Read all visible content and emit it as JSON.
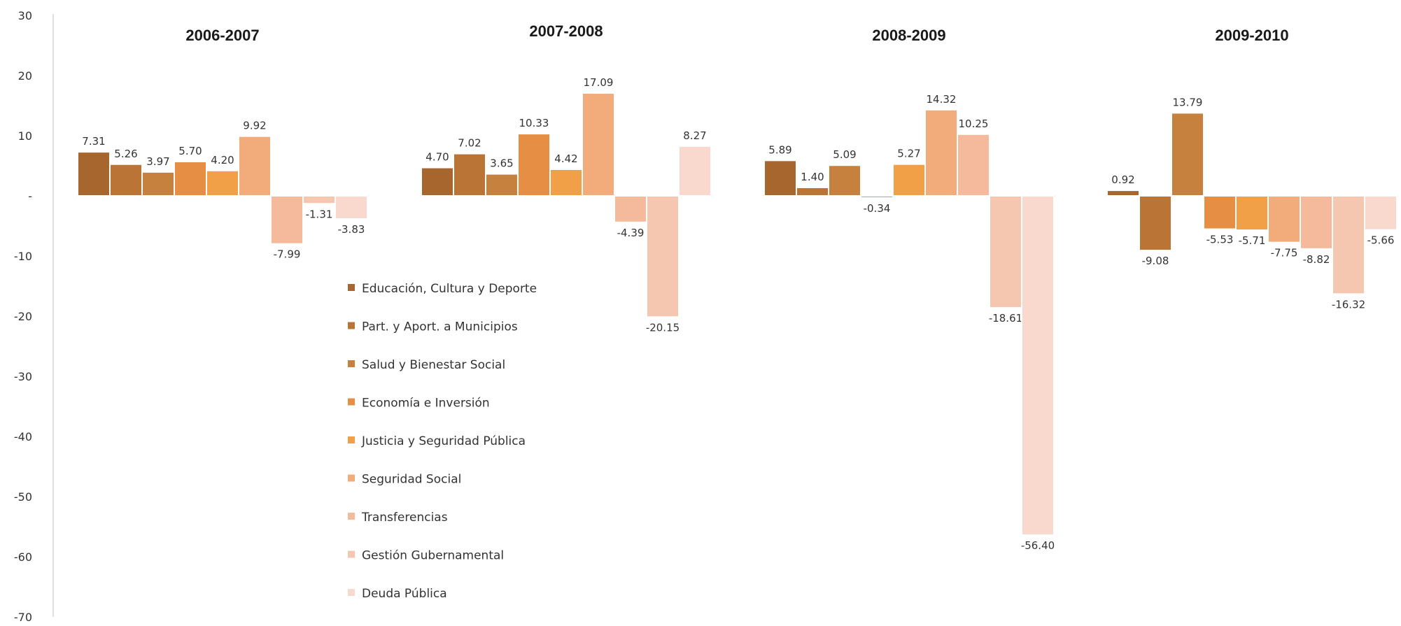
{
  "chart_data": {
    "type": "bar",
    "ylim": [
      -70,
      30
    ],
    "y_ticks": [
      "30",
      "20",
      "10",
      "-",
      "-10",
      "-20",
      "-30",
      "-40",
      "-50",
      "-60",
      "-70"
    ],
    "legend": {
      "placement": "center-left",
      "entries": [
        {
          "name": "Educación, Cultura y Deporte",
          "color": "#A8662F"
        },
        {
          "name": "Part. y Aport. a Municipios",
          "color": "#BA7436"
        },
        {
          "name": "Salud y Bienestar Social",
          "color": "#C7813E"
        },
        {
          "name": "Economía e Inversión",
          "color": "#E58E44"
        },
        {
          "name": "Justicia y Seguridad Pública",
          "color": "#F2A048"
        },
        {
          "name": "Seguridad Social",
          "color": "#F2AB7B"
        },
        {
          "name": "Transferencias",
          "color": "#F4BA9B"
        },
        {
          "name": "Gestión Gubernamental",
          "color": "#F6C7B0"
        },
        {
          "name": "Deuda Pública",
          "color": "#F9D8CD"
        }
      ]
    },
    "panels": [
      {
        "title": "2006-2007",
        "values": [
          7.31,
          5.26,
          3.97,
          5.7,
          4.2,
          9.92,
          -7.99,
          -1.31,
          -3.83
        ],
        "labels": [
          "7.31",
          "5.26",
          "3.97",
          "5.70",
          "4.20",
          "9.92",
          "-7.99",
          "-1.31",
          "-3.83"
        ]
      },
      {
        "title": "2007-2008",
        "values": [
          4.7,
          7.02,
          3.65,
          10.33,
          4.42,
          17.09,
          -4.39,
          -20.15,
          8.27
        ],
        "labels": [
          "4.70",
          "7.02",
          "3.65",
          "10.33",
          "4.42",
          "17.09",
          "-4.39",
          "-20.15",
          "8.27"
        ]
      },
      {
        "title": "2008-2009",
        "values": [
          5.89,
          1.4,
          5.09,
          -0.34,
          5.27,
          14.32,
          10.25,
          -18.61,
          -56.4
        ],
        "labels": [
          "5.89",
          "1.40",
          "5.09",
          "-0.34",
          "5.27",
          "14.32",
          "10.25",
          "-18.61",
          "-56.40"
        ]
      },
      {
        "title": "2009-2010",
        "values": [
          0.92,
          -9.08,
          13.79,
          -5.53,
          -5.71,
          -7.75,
          -8.82,
          -16.32,
          -5.66
        ],
        "labels": [
          "0.92",
          "-9.08",
          "13.79",
          "-5.53",
          "-5.71",
          "-7.75",
          "-8.82",
          "-16.32",
          "-5.66"
        ]
      }
    ]
  }
}
